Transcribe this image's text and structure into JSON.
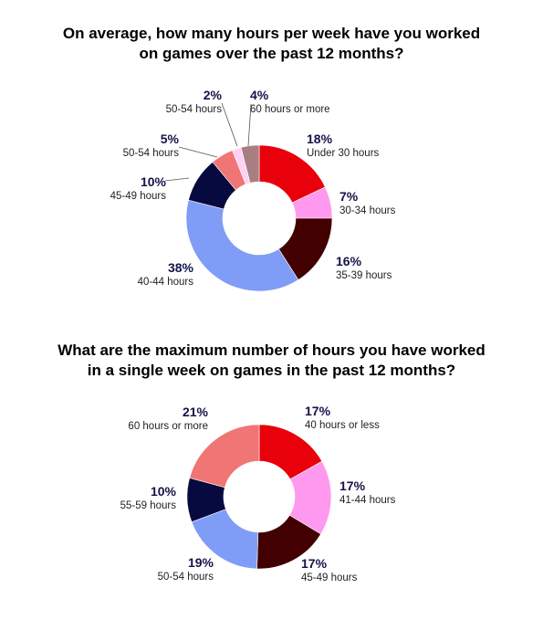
{
  "chart_data": [
    {
      "type": "pie",
      "title_lines": [
        "On average, how many hours per week have you worked",
        "on games over the past 12 months?"
      ],
      "slices": [
        {
          "label": "Under 30 hours",
          "value": 18,
          "pct": "18%",
          "color": "#e8000b"
        },
        {
          "label": "30-34 hours",
          "value": 7,
          "pct": "7%",
          "color": "#ff99f0"
        },
        {
          "label": "35-39 hours",
          "value": 16,
          "pct": "16%",
          "color": "#420000"
        },
        {
          "label": "40-44 hours",
          "value": 38,
          "pct": "38%",
          "color": "#7f9cf7"
        },
        {
          "label": "45-49 hours",
          "value": 10,
          "pct": "10%",
          "color": "#070a3e"
        },
        {
          "label": "50-54 hours",
          "value": 5,
          "pct": "5%",
          "color": "#f07575"
        },
        {
          "label": "50-54 hours",
          "value": 2,
          "pct": "2%",
          "color": "#ffd2f5"
        },
        {
          "label": "60 hours or more",
          "value": 4,
          "pct": "4%",
          "color": "#a87e80"
        }
      ]
    },
    {
      "type": "pie",
      "title_lines": [
        "What are the maximum number of hours you have worked",
        "in a single week on games in the past 12 months?"
      ],
      "slices": [
        {
          "label": "40 hours or less",
          "value": 17,
          "pct": "17%",
          "color": "#e8000b"
        },
        {
          "label": "41-44 hours",
          "value": 17,
          "pct": "17%",
          "color": "#ff99f0"
        },
        {
          "label": "45-49 hours",
          "value": 17,
          "pct": "17%",
          "color": "#420000"
        },
        {
          "label": "50-54 hours",
          "value": 19,
          "pct": "19%",
          "color": "#7f9cf7"
        },
        {
          "label": "55-59 hours",
          "value": 10,
          "pct": "10%",
          "color": "#070a3e"
        },
        {
          "label": "60 hours or more",
          "value": 21,
          "pct": "21%",
          "color": "#f07575"
        }
      ]
    }
  ]
}
